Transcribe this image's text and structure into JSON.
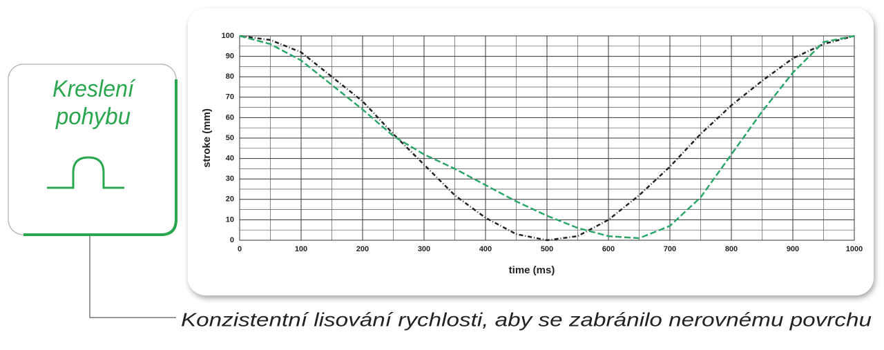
{
  "badge": {
    "title_lines": [
      "Kreslení",
      "pohybu"
    ]
  },
  "caption": "Konzistentní lisování rychlosti, aby se zabránilo nerovnému povrchu",
  "chart_data": {
    "type": "line",
    "x_label": "time (ms)",
    "y_label": "stroke (mm)",
    "x": [
      0,
      50,
      100,
      150,
      200,
      250,
      300,
      350,
      400,
      450,
      500,
      550,
      600,
      650,
      700,
      750,
      800,
      850,
      900,
      950,
      1000
    ],
    "series": [
      {
        "color": "#222222",
        "dash": "6 3 1 3",
        "values": [
          100,
          98,
          92,
          80,
          68,
          52,
          37,
          22,
          11,
          3,
          0,
          2,
          10,
          22,
          36,
          52,
          66,
          78,
          89,
          96,
          100
        ]
      },
      {
        "color": "#2aa66a",
        "dash": "9 4",
        "values": [
          100,
          96,
          88,
          76,
          64,
          51,
          42,
          35,
          27,
          19,
          12,
          6,
          2,
          1,
          7,
          21,
          42,
          63,
          82,
          97,
          100
        ]
      }
    ],
    "xlim": [
      0,
      1000
    ],
    "ylim": [
      0,
      100
    ],
    "xticks": [
      0,
      100,
      200,
      300,
      400,
      500,
      600,
      700,
      800,
      900,
      1000
    ],
    "yticks": [
      0,
      10,
      20,
      30,
      40,
      50,
      60,
      70,
      80,
      90,
      100
    ],
    "xminorticks": [
      50,
      150,
      250,
      350,
      450,
      550,
      650,
      750,
      850,
      950
    ],
    "yminorticks": [
      5,
      15,
      25,
      35,
      45,
      55,
      65,
      75,
      85,
      95
    ],
    "grid": true
  }
}
